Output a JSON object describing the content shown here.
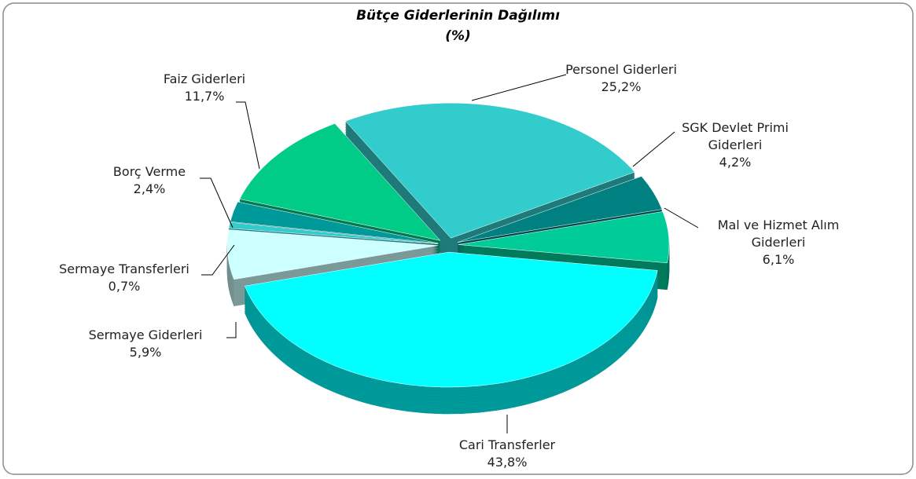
{
  "chart_data": {
    "type": "pie",
    "title": "Bütçe Giderlerinin Dağılımı",
    "subtitle": "(%)",
    "categories": [
      "Personel Giderleri",
      "SGK Devlet Primi Giderleri",
      "Mal ve Hizmet Alım Giderleri",
      "Cari Transferler",
      "Sermaye Giderleri",
      "Sermaye Transferleri",
      "Borç Verme",
      "Faiz Giderleri"
    ],
    "values": [
      25.2,
      4.2,
      6.1,
      43.8,
      5.9,
      0.7,
      2.4,
      11.7
    ],
    "value_labels": [
      "25,2%",
      "4,2%",
      "6,1%",
      "43,8%",
      "5,9%",
      "0,7%",
      "2,4%",
      "11,7%"
    ],
    "colors": [
      "#33cccc",
      "#008080",
      "#00cc99",
      "#00ffff",
      "#ccffff",
      "#33cccc",
      "#009999",
      "#00cc88"
    ]
  }
}
